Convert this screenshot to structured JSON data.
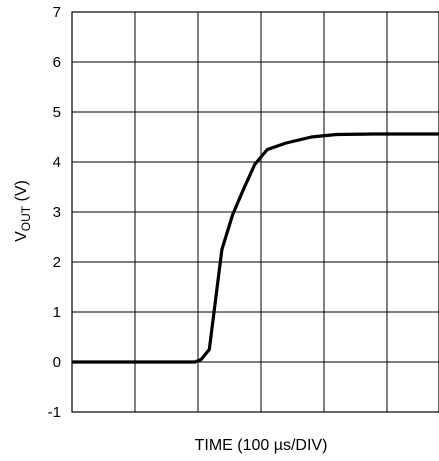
{
  "chart_data": {
    "type": "line",
    "title": "",
    "xlabel": "TIME (100 µs/DIV)",
    "ylabel": "V_OUT (V)",
    "ylabel_parts": {
      "main": "V",
      "sub": "OUT",
      "rest": " (V)"
    },
    "x_divisions": 6,
    "xlim": [
      0,
      6
    ],
    "ylim": [
      -1,
      7
    ],
    "y_ticks": [
      "-1",
      "0",
      "1",
      "2",
      "3",
      "4",
      "5",
      "6",
      "7"
    ],
    "y_tick_values": [
      -1,
      0,
      1,
      2,
      3,
      4,
      5,
      6,
      7
    ],
    "grid": true,
    "legend": "none",
    "series": [
      {
        "color": "#000000",
        "x": [
          0,
          1.95,
          2.05,
          2.18,
          2.38,
          2.55,
          2.72,
          2.9,
          3.1,
          3.4,
          3.8,
          4.2,
          4.8,
          5.5,
          6.0
        ],
        "y": [
          0,
          0,
          0.05,
          0.25,
          2.25,
          2.95,
          3.45,
          3.95,
          4.25,
          4.38,
          4.5,
          4.55,
          4.56,
          4.56,
          4.56
        ]
      }
    ]
  }
}
